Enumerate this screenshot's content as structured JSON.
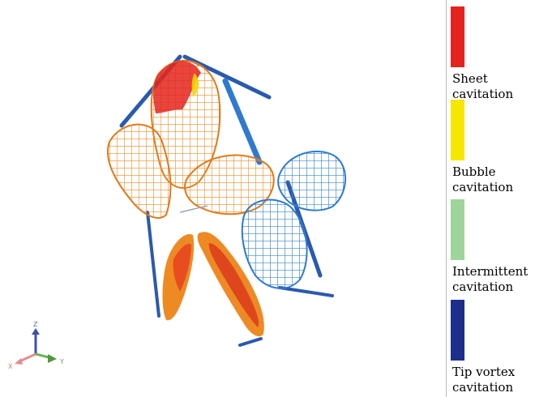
{
  "legend": {
    "items": [
      {
        "label": "Sheet cavitation",
        "color": "#e4241c"
      },
      {
        "label": "Bubble cavitation",
        "color": "#f7e600"
      },
      {
        "label": "Intermittent cavitation",
        "color": "#9fd49a"
      },
      {
        "label": "Tip vortex cavitation",
        "color": "#1c2f8c"
      }
    ]
  },
  "axes": {
    "z": "Z",
    "x": "X",
    "y": "Y"
  },
  "colors": {
    "mesh_orange": "#ee8a24",
    "mesh_blue": "#3a86cc",
    "vortex_blue": "#2a5aae"
  }
}
